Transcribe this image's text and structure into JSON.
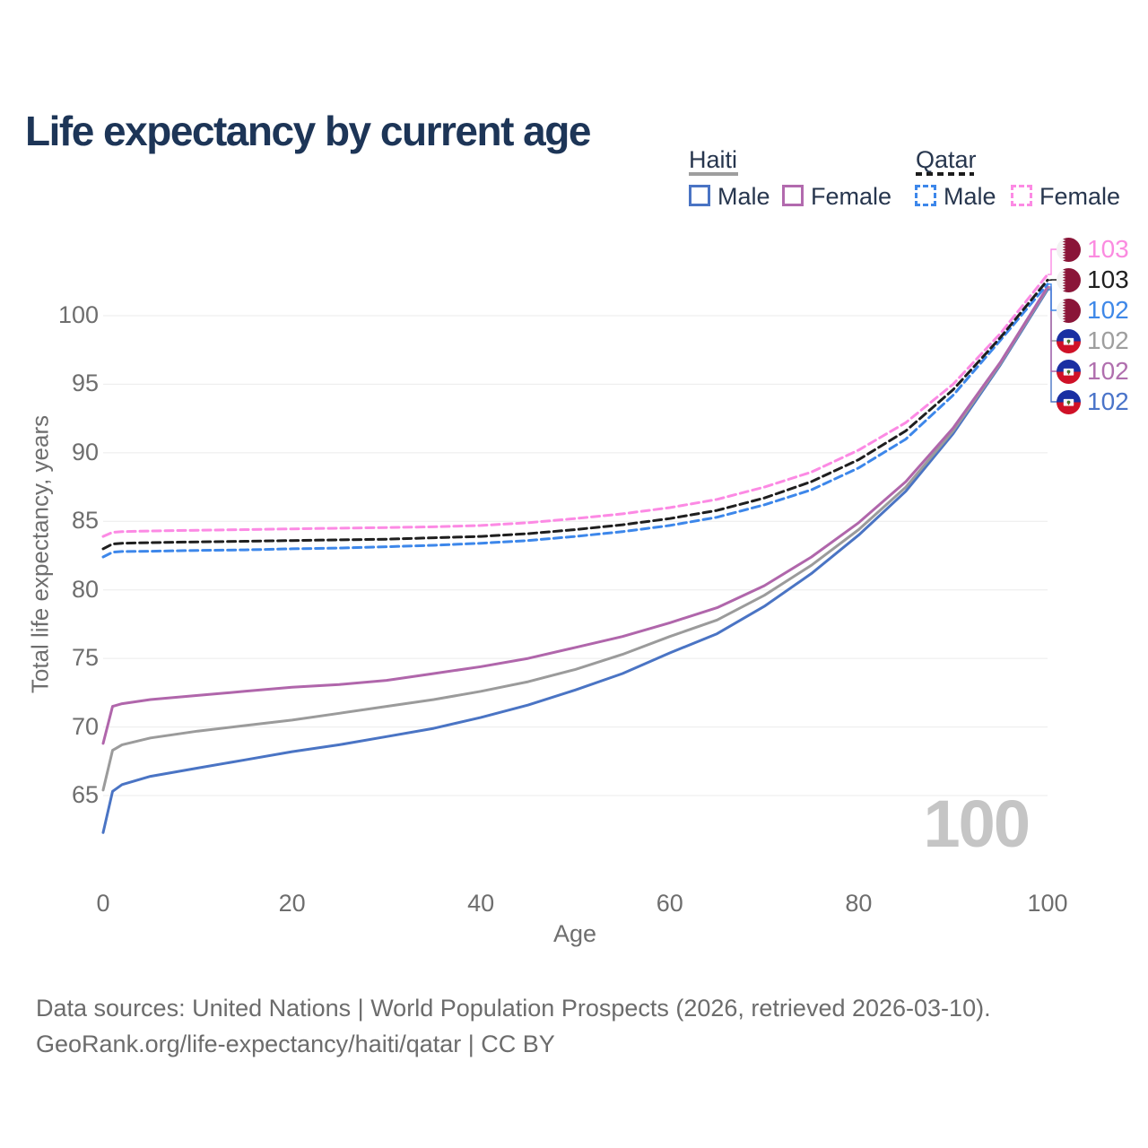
{
  "title": "Life expectancy by current age",
  "legend": {
    "groups": [
      {
        "name": "Haiti",
        "style": "solid",
        "items": [
          {
            "label": "Male",
            "color": "#4a74c4"
          },
          {
            "label": "Female",
            "color": "#b26aae"
          }
        ]
      },
      {
        "name": "Qatar",
        "style": "dashed",
        "items": [
          {
            "label": "Male",
            "color": "#3d87ea"
          },
          {
            "label": "Female",
            "color": "#fc8ae4"
          }
        ]
      }
    ]
  },
  "chart_data": {
    "type": "line",
    "title": "Life expectancy by current age",
    "xlabel": "Age",
    "ylabel": "Total life expectancy, years",
    "xlim": [
      0,
      100
    ],
    "ylim": [
      62,
      103.5
    ],
    "xticks": [
      "0",
      "20",
      "40",
      "60",
      "80",
      "100"
    ],
    "yticks": [
      "65",
      "70",
      "75",
      "80",
      "85",
      "90",
      "95",
      "100"
    ],
    "grid": "horizontal",
    "legend_position": "top-right",
    "watermark": "100",
    "x_ages": [
      0,
      1,
      2,
      5,
      10,
      15,
      20,
      25,
      30,
      35,
      40,
      45,
      50,
      55,
      60,
      65,
      70,
      75,
      80,
      85,
      90,
      95,
      100
    ],
    "series": [
      {
        "name": "Haiti Male",
        "country": "Haiti",
        "sex": "male",
        "color": "#4a74c4",
        "dash": false,
        "label_row": 5,
        "values": [
          62.3,
          65.3,
          65.8,
          66.4,
          67.0,
          67.6,
          68.2,
          68.7,
          69.3,
          69.9,
          70.7,
          71.6,
          72.7,
          73.9,
          75.4,
          76.8,
          78.8,
          81.2,
          84.0,
          87.2,
          91.4,
          96.4,
          101.9
        ]
      },
      {
        "name": "Haiti Total",
        "country": "Haiti",
        "sex": "both",
        "color": "#9b9b9b",
        "dash": false,
        "label_row": 3,
        "values": [
          65.4,
          68.3,
          68.7,
          69.2,
          69.7,
          70.1,
          70.5,
          71.0,
          71.5,
          72.0,
          72.6,
          73.3,
          74.2,
          75.3,
          76.6,
          77.8,
          79.6,
          81.8,
          84.4,
          87.5,
          91.6,
          96.5,
          102.0
        ]
      },
      {
        "name": "Haiti Female",
        "country": "Haiti",
        "sex": "female",
        "color": "#b066ab",
        "dash": false,
        "label_row": 4,
        "values": [
          68.8,
          71.5,
          71.7,
          72.0,
          72.3,
          72.6,
          72.9,
          73.1,
          73.4,
          73.9,
          74.4,
          75.0,
          75.8,
          76.6,
          77.6,
          78.7,
          80.3,
          82.4,
          84.9,
          87.9,
          91.8,
          96.6,
          102.1
        ]
      },
      {
        "name": "Qatar Male",
        "country": "Qatar",
        "sex": "male",
        "color": "#3d87ea",
        "dash": true,
        "label_row": 2,
        "values": [
          82.4,
          82.75,
          82.8,
          82.82,
          82.88,
          82.92,
          83.0,
          83.05,
          83.15,
          83.25,
          83.4,
          83.6,
          83.9,
          84.25,
          84.7,
          85.3,
          86.2,
          87.3,
          88.9,
          91.0,
          94.2,
          98.2,
          102.3
        ]
      },
      {
        "name": "Qatar Total",
        "country": "Qatar",
        "sex": "both",
        "color": "#1f1f1f",
        "dash": true,
        "label_row": 1,
        "values": [
          83.0,
          83.35,
          83.4,
          83.45,
          83.5,
          83.55,
          83.6,
          83.65,
          83.7,
          83.8,
          83.9,
          84.1,
          84.4,
          84.75,
          85.2,
          85.8,
          86.7,
          87.9,
          89.5,
          91.6,
          94.6,
          98.4,
          102.6
        ]
      },
      {
        "name": "Qatar Female",
        "country": "Qatar",
        "sex": "female",
        "color": "#fc8ae4",
        "dash": true,
        "label_row": 0,
        "values": [
          83.9,
          84.2,
          84.25,
          84.3,
          84.35,
          84.4,
          84.45,
          84.5,
          84.55,
          84.6,
          84.7,
          84.9,
          85.2,
          85.55,
          86.0,
          86.6,
          87.5,
          88.6,
          90.2,
          92.2,
          95.0,
          98.7,
          103.0
        ]
      }
    ]
  },
  "end_labels": [
    {
      "value": "103",
      "color": "#fb8be0",
      "flag": "qatar",
      "series": "Qatar Female"
    },
    {
      "value": "103",
      "color": "#1f1f1f",
      "flag": "qatar",
      "series": "Qatar Total"
    },
    {
      "value": "102",
      "color": "#3f88e8",
      "flag": "qatar",
      "series": "Qatar Male"
    },
    {
      "value": "102",
      "color": "#9e9e9e",
      "flag": "haiti",
      "series": "Haiti Total"
    },
    {
      "value": "102",
      "color": "#b06fae",
      "flag": "haiti",
      "series": "Haiti Female"
    },
    {
      "value": "102",
      "color": "#4a74c9",
      "flag": "haiti",
      "series": "Haiti Male"
    }
  ],
  "footer": {
    "line1": "Data sources: United Nations | World Population Prospects (2026, retrieved 2026-03-10).",
    "line2": "GeoRank.org/life-expectancy/haiti/qatar | CC BY"
  }
}
